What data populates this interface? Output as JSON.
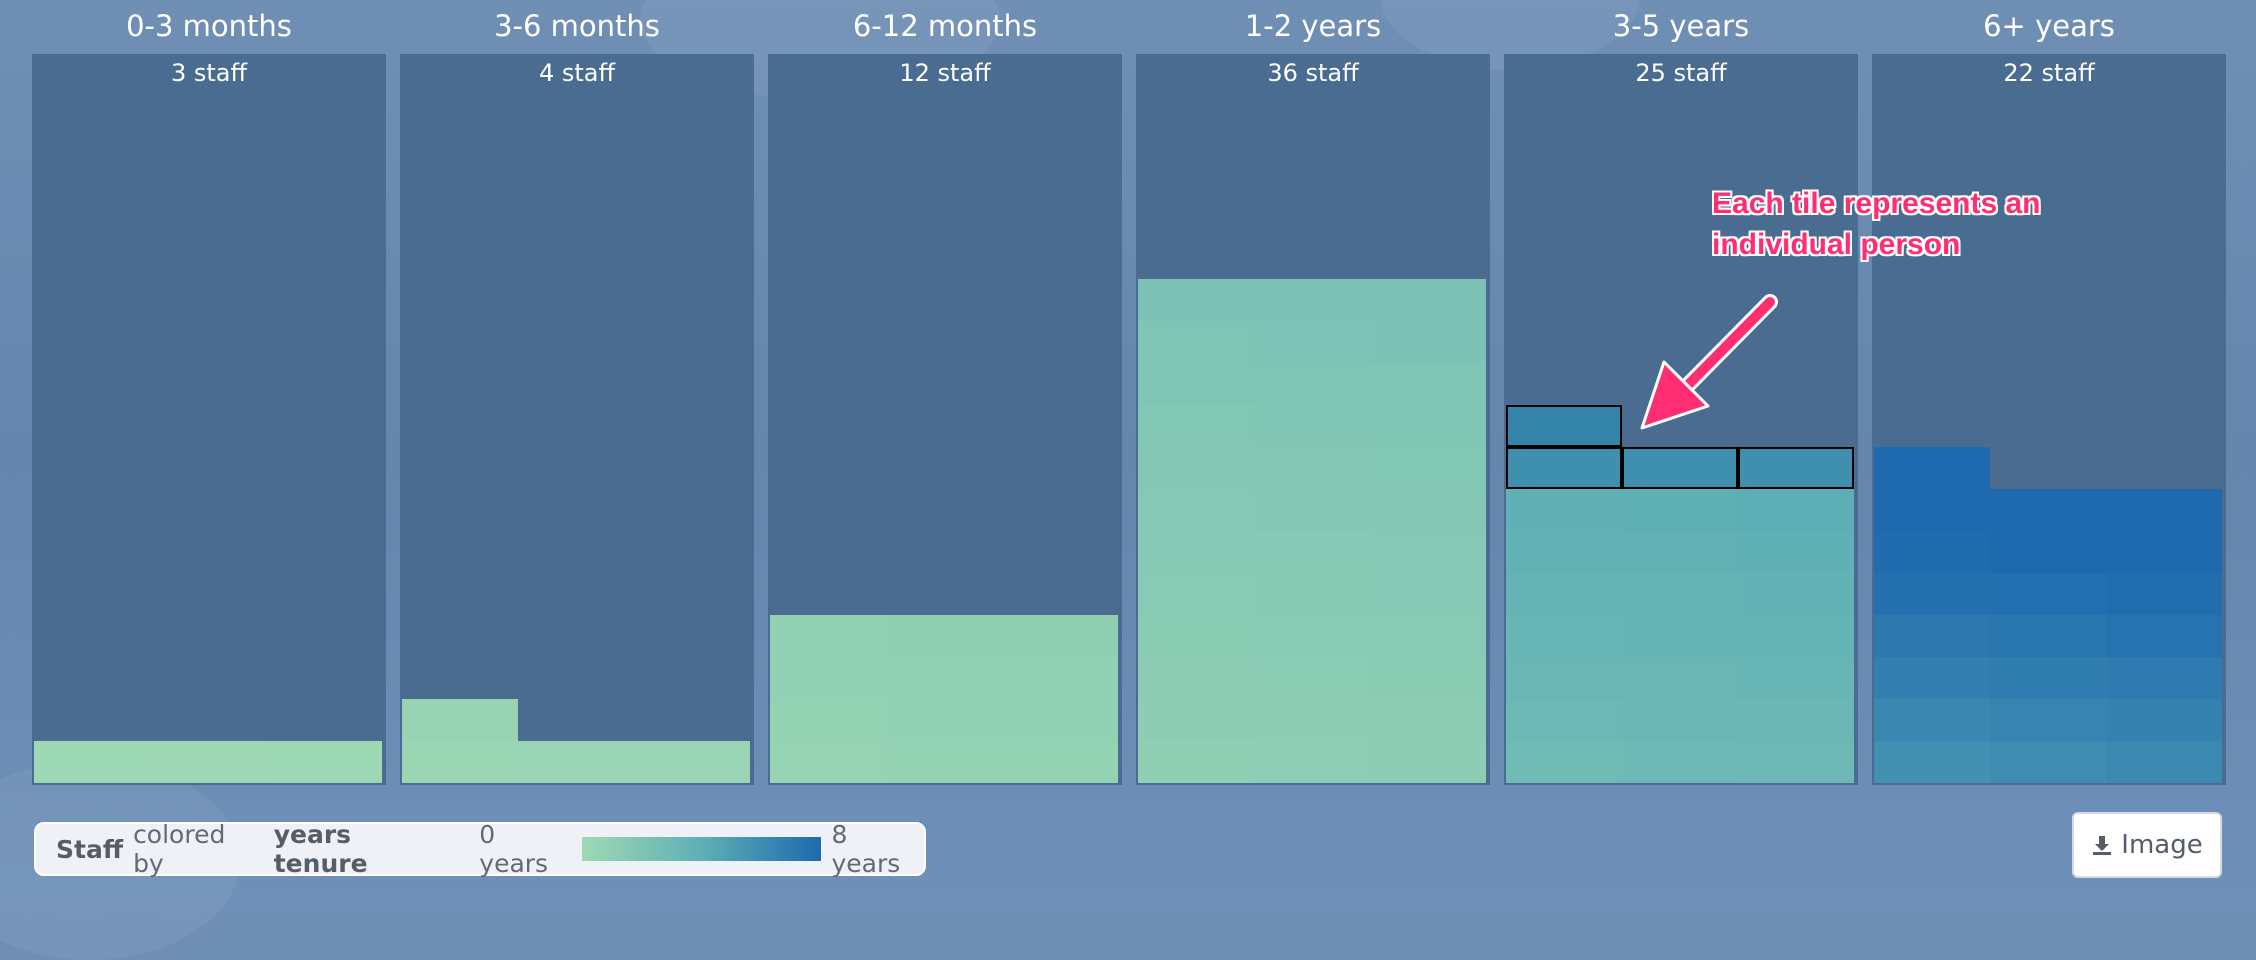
{
  "chart_data": {
    "type": "unit",
    "categories": [
      "0-3 months",
      "3-6 months",
      "6-12 months",
      "1-2 years",
      "3-5 years",
      "6+ years"
    ],
    "counts": [
      3,
      4,
      12,
      36,
      25,
      22
    ],
    "count_labels": [
      "3 staff",
      "4 staff",
      "12 staff",
      "36 staff",
      "25 staff",
      "22 staff"
    ],
    "tiles_per_row": 3,
    "tile_tenure_years": [
      [
        0.1,
        0.15,
        0.2
      ],
      [
        0.3,
        0.35,
        0.4,
        0.45
      ],
      [
        0.6,
        0.65,
        0.7,
        0.7,
        0.75,
        0.8,
        0.8,
        0.85,
        0.9,
        0.9,
        0.95,
        0.95
      ],
      [
        1.0,
        1.05,
        1.1,
        1.1,
        1.15,
        1.2,
        1.2,
        1.25,
        1.3,
        1.3,
        1.35,
        1.4,
        1.4,
        1.45,
        1.5,
        1.5,
        1.55,
        1.6,
        1.6,
        1.65,
        1.7,
        1.7,
        1.75,
        1.8,
        1.8,
        1.85,
        1.9,
        1.9,
        1.95,
        2.0,
        2.0,
        2.05,
        2.1,
        2.1,
        2.15,
        2.2
      ],
      [
        3.0,
        3.05,
        3.1,
        3.15,
        3.2,
        3.25,
        3.3,
        3.35,
        3.4,
        3.45,
        3.5,
        3.55,
        3.6,
        3.65,
        3.7,
        3.75,
        3.8,
        3.85,
        3.9,
        3.95,
        4.0,
        4.1,
        4.2,
        4.3,
        4.4
      ],
      [
        5.8,
        6.0,
        6.2,
        6.3,
        6.5,
        6.6,
        6.8,
        6.9,
        7.0,
        7.2,
        7.3,
        7.5,
        7.6,
        7.7,
        7.8,
        7.9,
        8.0,
        8.0,
        8.0,
        8.0,
        8.0,
        8.0
      ]
    ],
    "highlighted_tiles": {
      "column": 4,
      "indices": [
        21,
        22,
        23,
        24
      ]
    },
    "color_scale": {
      "domain": [
        0,
        8
      ],
      "colors": [
        "#9fd9b4",
        "#5eafb5",
        "#1f6aae"
      ]
    }
  },
  "annotation": {
    "text": "Each tile represents an individual person",
    "color": "#ff2d72"
  },
  "legend": {
    "bold1": "Staff",
    "mid": "colored by",
    "bold2": "years tenure",
    "min_label": "0 years",
    "max_label": "8 years"
  },
  "toolbar": {
    "image_label": "Image",
    "image_icon": "download-icon"
  },
  "colors": {
    "column_bg": "#4a6c90",
    "header_text": "#ffffff"
  }
}
